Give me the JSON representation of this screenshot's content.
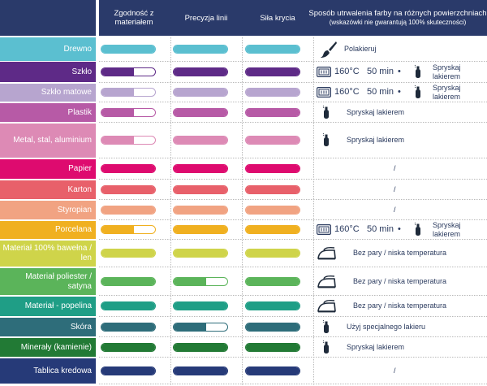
{
  "header": {
    "col1": "Zgodność z materiałem",
    "col2": "Precyzja linii",
    "col3": "Siła krycia",
    "col4_title": "Sposób utrwalenia farby na różnych powierzchniach",
    "col4_subtitle": "(wskazówki nie gwarantują 100% skuteczności)",
    "background": "#2a3a6a"
  },
  "rows": [
    {
      "label": "Drewno",
      "color": "#5bbfd0",
      "compat": 1,
      "precision": 1,
      "coverage": 1,
      "note": {
        "type": "brush",
        "text": "Polakieruj"
      }
    },
    {
      "label": "Szkło",
      "color": "#5e2a87",
      "compat": 0.6,
      "precision": 1,
      "coverage": 1,
      "note": {
        "type": "oven_spray",
        "temp": "160°C",
        "time": "50 min",
        "sep": "•",
        "text": "Spryskaj lakierem"
      }
    },
    {
      "label": "Szkło matowe",
      "color": "#b7a5cf",
      "compat": 0.6,
      "precision": 1,
      "coverage": 1,
      "note": {
        "type": "oven_spray",
        "temp": "160°C",
        "time": "50 min",
        "sep": "•",
        "text": "Spryskaj lakierem"
      }
    },
    {
      "label": "Plastik",
      "color": "#b75aa6",
      "compat": 0.6,
      "precision": 1,
      "coverage": 1,
      "note": {
        "type": "spray",
        "text": "Spryskaj lakierem"
      }
    },
    {
      "label": "Metal, stal, aluminium",
      "color": "#dd8ab5",
      "compat": 0.6,
      "precision": 1,
      "coverage": 1,
      "note": {
        "type": "spray",
        "text": "Spryskaj lakierem"
      }
    },
    {
      "label": "Papier",
      "color": "#de0b6f",
      "compat": 1,
      "precision": 1,
      "coverage": 1,
      "note": {
        "type": "none",
        "text": "/"
      }
    },
    {
      "label": "Karton",
      "color": "#e8606a",
      "compat": 1,
      "precision": 1,
      "coverage": 1,
      "note": {
        "type": "none",
        "text": "/"
      }
    },
    {
      "label": "Styropian",
      "color": "#f1a382",
      "compat": 1,
      "precision": 1,
      "coverage": 1,
      "note": {
        "type": "none",
        "text": "/"
      }
    },
    {
      "label": "Porcelana",
      "color": "#f0b020",
      "compat": 0.6,
      "precision": 1,
      "coverage": 1,
      "note": {
        "type": "oven_spray",
        "temp": "160°C",
        "time": "50 min",
        "sep": "•",
        "text": "Spryskaj lakierem"
      }
    },
    {
      "label": "Materiał 100% bawełna / len",
      "color": "#cfd44a",
      "compat": 1,
      "precision": 1,
      "coverage": 1,
      "note": {
        "type": "iron",
        "text": "Bez pary / niska temperatura"
      }
    },
    {
      "label": "Materiał poliester / satyna",
      "color": "#5bb45a",
      "compat": 1,
      "precision": 0.6,
      "coverage": 1,
      "note": {
        "type": "iron",
        "text": "Bez pary / niska temperatura"
      }
    },
    {
      "label": "Materiał - popelina",
      "color": "#1f9e86",
      "compat": 1,
      "precision": 1,
      "coverage": 1,
      "note": {
        "type": "iron",
        "text": "Bez pary / niska temperatura"
      }
    },
    {
      "label": "Skóra",
      "color": "#2e6d7a",
      "compat": 1,
      "precision": 0.6,
      "coverage": 1,
      "note": {
        "type": "spray",
        "text": "Użyj specjalnego lakieru"
      }
    },
    {
      "label": "Minerały (kamienie)",
      "color": "#227a35",
      "compat": 1,
      "precision": 1,
      "coverage": 1,
      "note": {
        "type": "spray",
        "text": "Spryskaj lakierem"
      }
    },
    {
      "label": "Tablica kredowa",
      "color": "#263a78",
      "compat": 1,
      "precision": 1,
      "coverage": 1,
      "note": {
        "type": "none",
        "text": "/"
      }
    }
  ]
}
